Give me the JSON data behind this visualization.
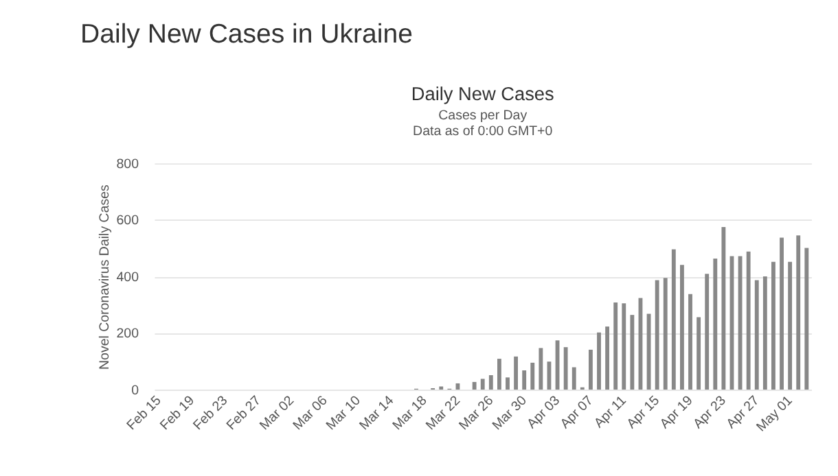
{
  "chart_data": {
    "type": "bar",
    "title": "Daily New Cases",
    "subtitle": "Cases per Day\nData as of 0:00 GMT+0",
    "ylabel": "Novel Coronavirus Daily Cases",
    "annotations": [
      "Daily New Cases in Ukraine"
    ],
    "categories": [
      "Feb 15",
      null,
      null,
      null,
      "Feb 19",
      null,
      null,
      null,
      "Feb 23",
      null,
      null,
      null,
      "Feb 27",
      null,
      null,
      null,
      "Mar 02",
      null,
      null,
      null,
      "Mar 06",
      null,
      null,
      null,
      "Mar 10",
      null,
      null,
      null,
      "Mar 14",
      null,
      null,
      null,
      "Mar 18",
      null,
      null,
      null,
      "Mar 22",
      null,
      null,
      null,
      "Mar 26",
      null,
      null,
      null,
      "Mar 30",
      null,
      null,
      null,
      "Apr 03",
      null,
      null,
      null,
      "Apr 07",
      null,
      null,
      null,
      "Apr 11",
      null,
      null,
      null,
      "Apr 15",
      null,
      null,
      null,
      "Apr 19",
      null,
      null,
      null,
      "Apr 23",
      null,
      null,
      null,
      "Apr 27",
      null,
      null,
      null,
      "May 01",
      null,
      null
    ],
    "values": [
      0,
      0,
      0,
      0,
      0,
      0,
      0,
      0,
      0,
      0,
      0,
      0,
      0,
      0,
      0,
      0,
      0,
      0,
      0,
      0,
      0,
      0,
      0,
      0,
      0,
      0,
      0,
      0,
      0,
      0,
      0,
      3,
      0,
      5,
      11,
      3,
      22,
      0,
      27,
      38,
      51,
      109,
      43,
      117,
      68,
      95,
      147,
      99,
      174,
      150,
      79,
      8,
      141,
      202,
      223,
      308,
      305,
      264,
      324,
      268,
      387,
      395,
      496,
      441,
      338,
      256,
      409,
      463,
      575,
      472,
      472,
      488,
      387,
      400,
      452,
      537,
      452,
      545,
      501
    ],
    "color": "#888888",
    "ylim": [
      0,
      800
    ],
    "yticks": [
      0,
      200,
      400,
      600,
      800
    ],
    "grid": "y"
  }
}
